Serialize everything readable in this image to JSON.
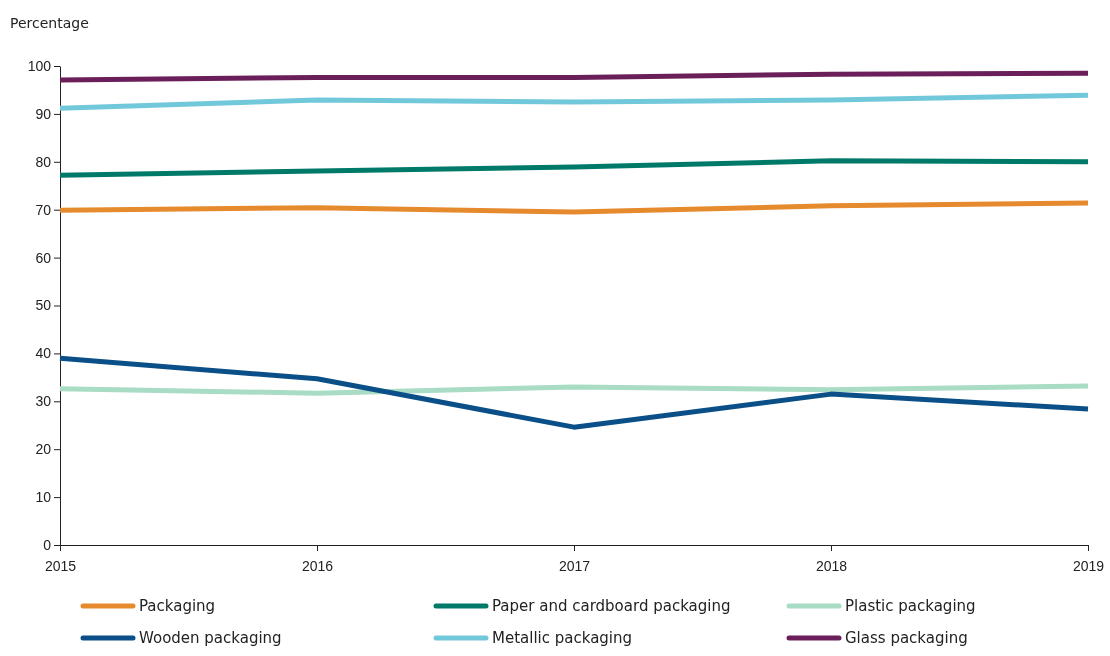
{
  "chart_data": {
    "type": "line",
    "ylabel": "Percentage",
    "x": [
      2015,
      2016,
      2017,
      2018,
      2019
    ],
    "xlim": [
      2015,
      2019
    ],
    "xticks": [
      2015,
      2016,
      2017,
      2018,
      2019
    ],
    "ylim": [
      0,
      100
    ],
    "yticks": [
      0,
      10,
      20,
      30,
      40,
      50,
      60,
      70,
      80,
      90,
      100
    ],
    "grid": false,
    "legend": "bottom",
    "marker": "none",
    "line_style": "solid",
    "series": [
      {
        "name": "Packaging",
        "color": "#e68a2e",
        "values": [
          69.9,
          70.4,
          69.5,
          70.8,
          71.4
        ]
      },
      {
        "name": "Paper and cardboard packaging",
        "color": "#007a68",
        "values": [
          77.2,
          78.1,
          78.9,
          80.2,
          80.0
        ]
      },
      {
        "name": "Plastic packaging",
        "color": "#a8dcc4",
        "values": [
          32.6,
          31.7,
          33.0,
          32.4,
          33.2
        ]
      },
      {
        "name": "Wooden packaging",
        "color": "#0a4f87",
        "values": [
          39.0,
          34.7,
          24.6,
          31.5,
          28.4
        ]
      },
      {
        "name": "Metallic packaging",
        "color": "#72c8db",
        "values": [
          91.2,
          92.9,
          92.5,
          92.9,
          93.9
        ]
      },
      {
        "name": "Glass packaging",
        "color": "#6b1f5a",
        "values": [
          97.1,
          97.6,
          97.6,
          98.3,
          98.5
        ]
      }
    ]
  }
}
